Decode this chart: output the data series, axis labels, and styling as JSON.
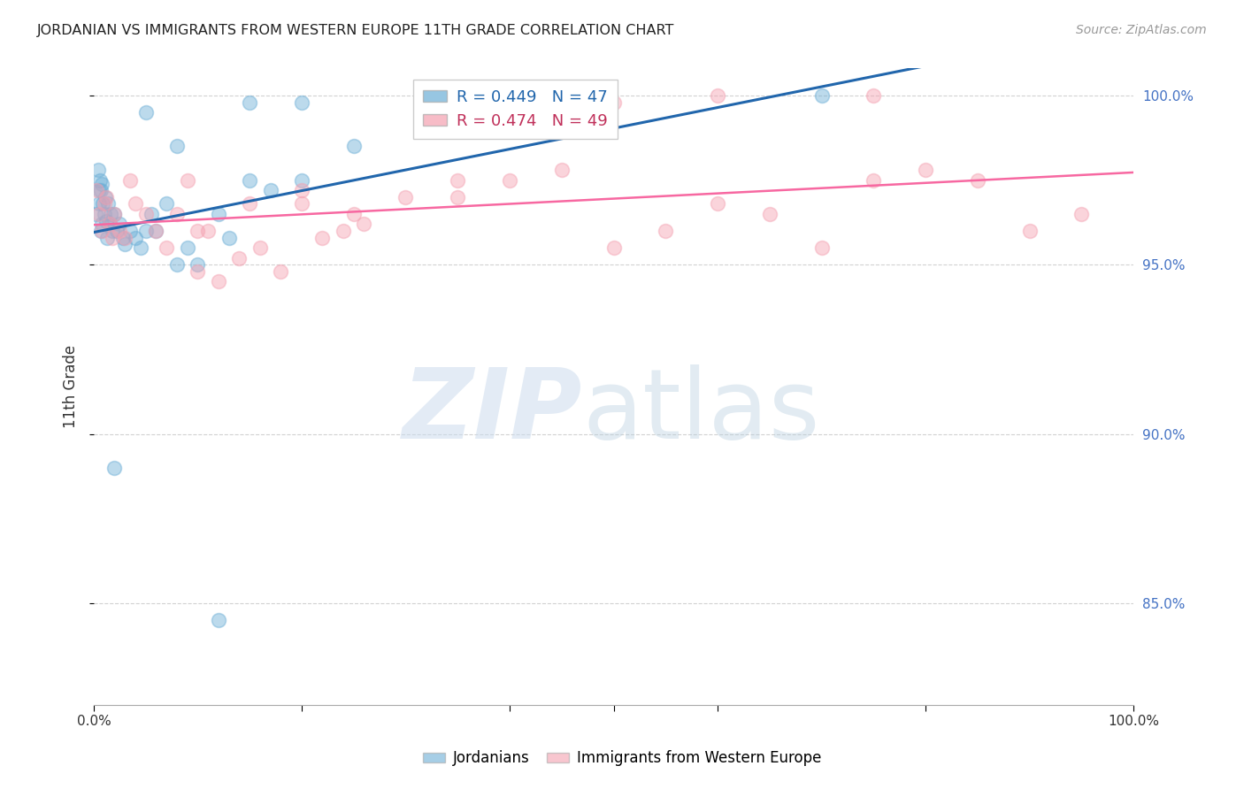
{
  "title": "JORDANIAN VS IMMIGRANTS FROM WESTERN EUROPE 11TH GRADE CORRELATION CHART",
  "source": "Source: ZipAtlas.com",
  "ylabel": "11th Grade",
  "legend_blue_r": "R = 0.449",
  "legend_blue_n": "N = 47",
  "legend_pink_r": "R = 0.474",
  "legend_pink_n": "N = 49",
  "blue_color": "#6baed6",
  "pink_color": "#f4a0b0",
  "blue_line_color": "#2166ac",
  "pink_line_color": "#f768a1",
  "background_color": "#ffffff",
  "grid_color": "#cccccc",
  "xlim": [
    0.0,
    1.0
  ],
  "ylim": [
    0.82,
    1.008
  ],
  "yticks": [
    0.85,
    0.9,
    0.95,
    1.0
  ],
  "ytick_labels": [
    "85.0%",
    "90.0%",
    "95.0%",
    "100.0%"
  ],
  "blue_x": [
    0.002,
    0.004,
    0.005,
    0.005,
    0.006,
    0.007,
    0.007,
    0.008,
    0.008,
    0.009,
    0.01,
    0.011,
    0.012,
    0.013,
    0.014,
    0.015,
    0.016,
    0.018,
    0.02,
    0.022,
    0.025,
    0.028,
    0.03,
    0.035,
    0.04,
    0.045,
    0.05,
    0.055,
    0.06,
    0.07,
    0.08,
    0.09,
    0.1,
    0.12,
    0.13,
    0.15,
    0.17,
    0.2,
    0.25,
    0.02,
    0.05,
    0.08,
    0.12,
    0.15,
    0.2,
    0.4,
    0.7
  ],
  "blue_y": [
    0.965,
    0.978,
    0.972,
    0.968,
    0.975,
    0.96,
    0.972,
    0.962,
    0.974,
    0.968,
    0.965,
    0.97,
    0.963,
    0.958,
    0.968,
    0.962,
    0.965,
    0.96,
    0.965,
    0.96,
    0.962,
    0.958,
    0.956,
    0.96,
    0.958,
    0.955,
    0.96,
    0.965,
    0.96,
    0.968,
    0.95,
    0.955,
    0.95,
    0.965,
    0.958,
    0.975,
    0.972,
    0.975,
    0.985,
    0.89,
    0.995,
    0.985,
    0.845,
    0.998,
    0.998,
    0.998,
    1.0
  ],
  "pink_x": [
    0.003,
    0.005,
    0.008,
    0.01,
    0.012,
    0.015,
    0.018,
    0.02,
    0.025,
    0.03,
    0.035,
    0.04,
    0.05,
    0.06,
    0.07,
    0.08,
    0.09,
    0.1,
    0.11,
    0.12,
    0.14,
    0.16,
    0.18,
    0.2,
    0.22,
    0.24,
    0.26,
    0.3,
    0.35,
    0.4,
    0.45,
    0.5,
    0.55,
    0.6,
    0.65,
    0.7,
    0.75,
    0.8,
    0.85,
    0.9,
    0.95,
    0.1,
    0.15,
    0.2,
    0.25,
    0.35,
    0.5,
    0.6,
    0.75
  ],
  "pink_y": [
    0.972,
    0.965,
    0.96,
    0.968,
    0.97,
    0.962,
    0.958,
    0.965,
    0.96,
    0.958,
    0.975,
    0.968,
    0.965,
    0.96,
    0.955,
    0.965,
    0.975,
    0.948,
    0.96,
    0.945,
    0.952,
    0.955,
    0.948,
    0.968,
    0.958,
    0.96,
    0.962,
    0.97,
    0.975,
    0.975,
    0.978,
    0.955,
    0.96,
    0.968,
    0.965,
    0.955,
    0.975,
    0.978,
    0.975,
    0.96,
    0.965,
    0.96,
    0.968,
    0.972,
    0.965,
    0.97,
    0.998,
    1.0,
    1.0
  ]
}
